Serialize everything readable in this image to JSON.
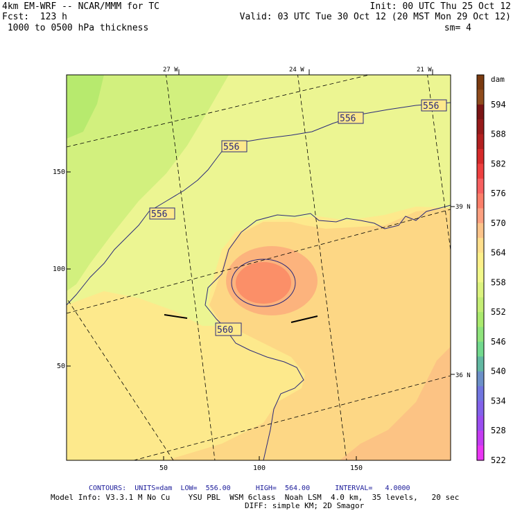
{
  "header": {
    "model": "4km EM-WRF -- NCAR/MMM for TC",
    "forecast": "Fcst:  123 h",
    "field": " 1000 to 0500 hPa thickness",
    "init": "Init: 00 UTC Thu 25 Oct 12",
    "valid": "Valid: 03 UTC Tue 30 Oct 12 (20 MST Mon 29 Oct 12)",
    "smooth": "sm= 4"
  },
  "top_lon_labels": [
    "27 W",
    "24 W",
    "21 W"
  ],
  "right_lat_labels": [
    "39 N",
    "36 N"
  ],
  "y_ticks": [
    "150",
    "100",
    "50"
  ],
  "x_ticks": [
    "50",
    "100",
    "150"
  ],
  "contour_labels": [
    "556",
    "556",
    "556",
    "556",
    "560"
  ],
  "colorbar": {
    "unit": "dam",
    "labels": [
      "594",
      "588",
      "582",
      "576",
      "570",
      "564",
      "558",
      "552",
      "546",
      "540",
      "534",
      "528",
      "522"
    ],
    "colors": [
      "#7a3a10",
      "#8f4b1c",
      "#7a1414",
      "#961a1a",
      "#b22020",
      "#d52a2a",
      "#ee4040",
      "#f76060",
      "#fb7f6a",
      "#fda080",
      "#fcc48a",
      "#ffdf8c",
      "#fdf08a",
      "#f2f88a",
      "#dcf37f",
      "#c5ee75",
      "#aaea6e",
      "#8fe47c",
      "#72d98e",
      "#62b8a2",
      "#6c90c8",
      "#7276e0",
      "#8262ea",
      "#9a4ef0",
      "#c43cf2",
      "#ea36f4"
    ]
  },
  "footer": {
    "contours": "CONTOURS:  UNITS=dam  LOW=  556.00      HIGH=  564.00      INTERVAL=   4.0000",
    "model_info": "Model Info: V3.3.1 M No Cu    YSU PBL  WSM 6class  Noah LSM  4.0 km,  35 levels,   20 sec",
    "diff": "DIFF: simple KM; 2D Smagor"
  }
}
